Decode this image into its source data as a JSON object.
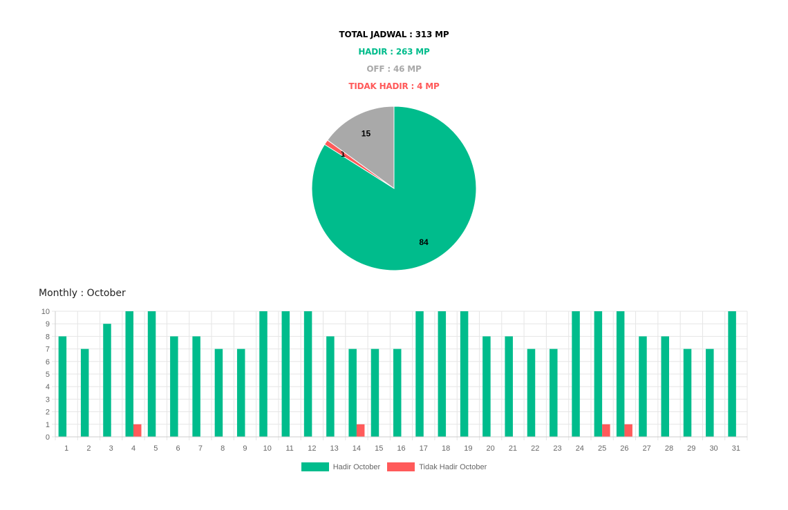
{
  "summary": {
    "total": "TOTAL JADWAL : 313 MP",
    "hadir": "HADIR : 263 MP",
    "off": "OFF : 46 MP",
    "tidak_hadir": "TIDAK HADIR : 4 MP"
  },
  "colors": {
    "hadir": "#00bc8c",
    "off": "#a9a9a9",
    "tidak_hadir": "#ff5a5a",
    "grid": "#e5e5e5",
    "tick": "#666666"
  },
  "monthly_title": "Monthly : October",
  "legend": {
    "hadir": "Hadir October",
    "tidak_hadir": "Tidak Hadir October"
  },
  "chart_data": [
    {
      "type": "pie",
      "slices": [
        {
          "label": "84",
          "value": 84,
          "color": "#00bc8c"
        },
        {
          "label": "1",
          "value": 1,
          "color": "#ff5a5a"
        },
        {
          "label": "15",
          "value": 15,
          "color": "#a9a9a9"
        }
      ]
    },
    {
      "type": "bar",
      "title": "Monthly : October",
      "categories": [
        "1",
        "2",
        "3",
        "4",
        "5",
        "6",
        "7",
        "8",
        "9",
        "10",
        "11",
        "12",
        "13",
        "14",
        "15",
        "16",
        "17",
        "18",
        "19",
        "20",
        "21",
        "22",
        "23",
        "24",
        "25",
        "26",
        "27",
        "28",
        "29",
        "30",
        "31"
      ],
      "series": [
        {
          "name": "Hadir October",
          "color": "#00bc8c",
          "values": [
            8,
            7,
            9,
            10,
            10,
            8,
            8,
            7,
            7,
            10,
            10,
            10,
            8,
            7,
            7,
            7,
            10,
            10,
            10,
            8,
            8,
            7,
            7,
            10,
            10,
            10,
            8,
            8,
            7,
            7,
            10
          ]
        },
        {
          "name": "Tidak Hadir October",
          "color": "#ff5a5a",
          "values": [
            0,
            0,
            0,
            1,
            0,
            0,
            0,
            0,
            0,
            0,
            0,
            0,
            0,
            1,
            0,
            0,
            0,
            0,
            0,
            0,
            0,
            0,
            0,
            0,
            1,
            1,
            0,
            0,
            0,
            0,
            0
          ]
        }
      ],
      "ylim": [
        0,
        10
      ],
      "yticks": [
        0,
        1,
        2,
        3,
        4,
        5,
        6,
        7,
        8,
        9,
        10
      ],
      "grid": true,
      "legend_position": "bottom"
    }
  ]
}
